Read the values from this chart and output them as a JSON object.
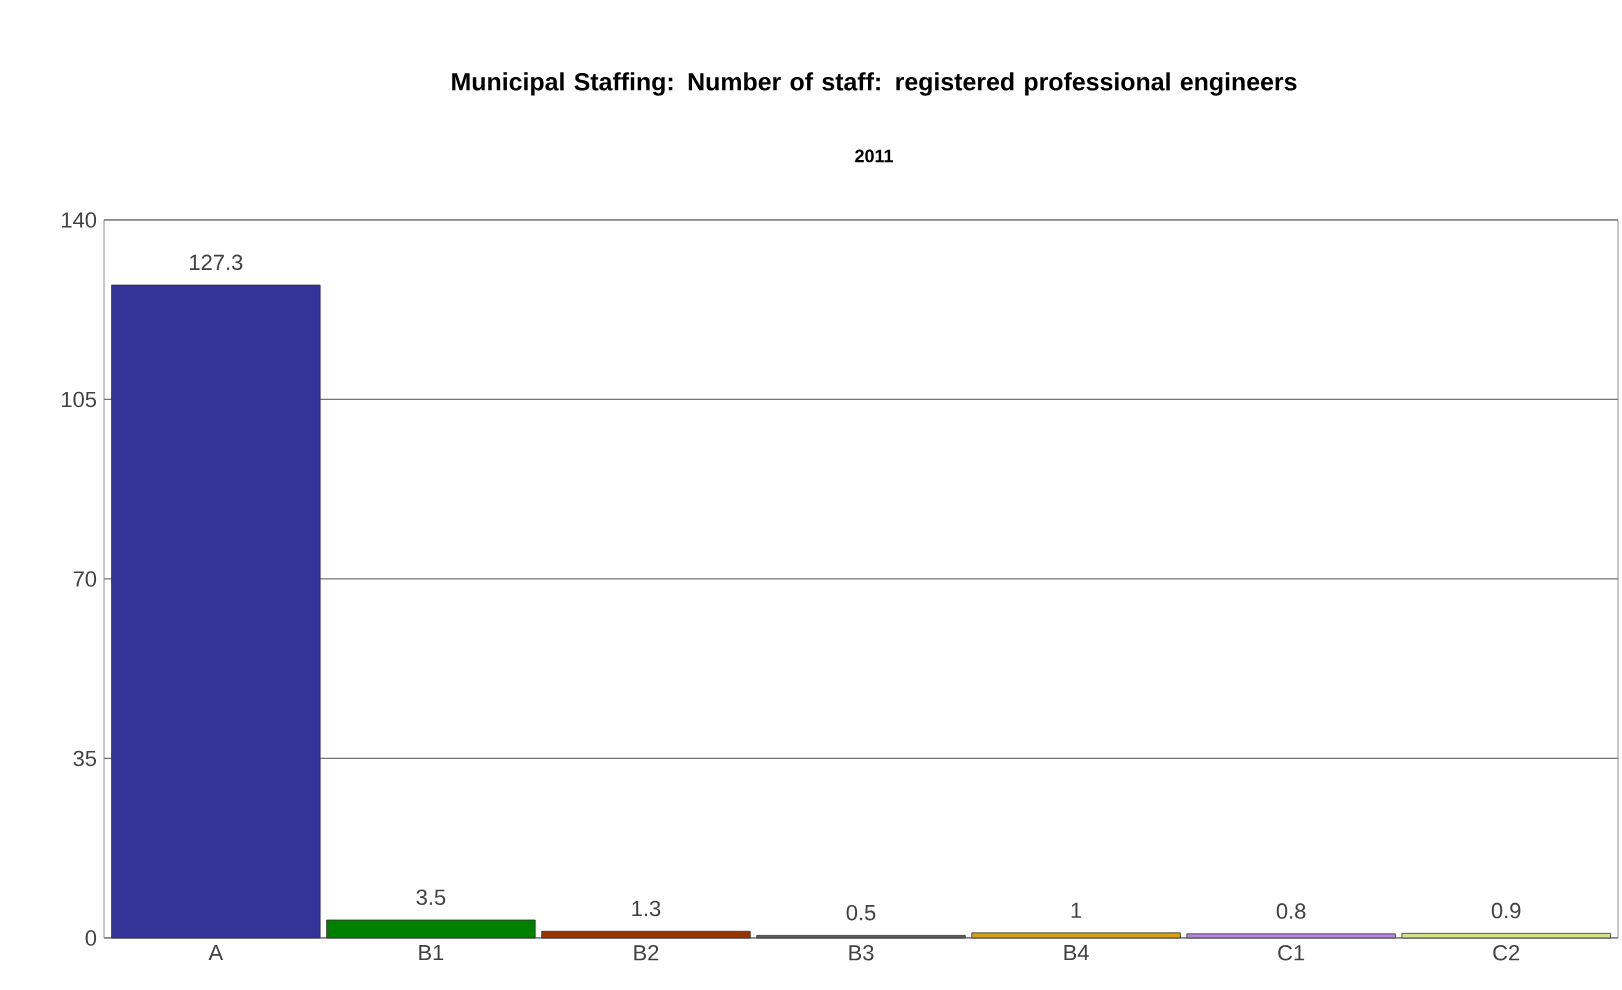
{
  "chart_data": {
    "type": "bar",
    "title": "Municipal Staffing: Number of staff: registered professional engineers",
    "subtitle": "2011",
    "categories": [
      "A",
      "B1",
      "B2",
      "B3",
      "B4",
      "C1",
      "C2"
    ],
    "values": [
      127.3,
      3.5,
      1.3,
      0.5,
      1,
      0.8,
      0.9
    ],
    "value_labels": [
      "127.3",
      "3.5",
      "1.3",
      "0.5",
      "1",
      "0.8",
      "0.9"
    ],
    "colors": [
      "#333399",
      "#008000",
      "#993300",
      "#606060",
      "#d4a017",
      "#b784e0",
      "#d4e08a"
    ],
    "ylim": [
      0,
      140
    ],
    "yticks": [
      0,
      35,
      70,
      105,
      140
    ],
    "grid": "y"
  }
}
